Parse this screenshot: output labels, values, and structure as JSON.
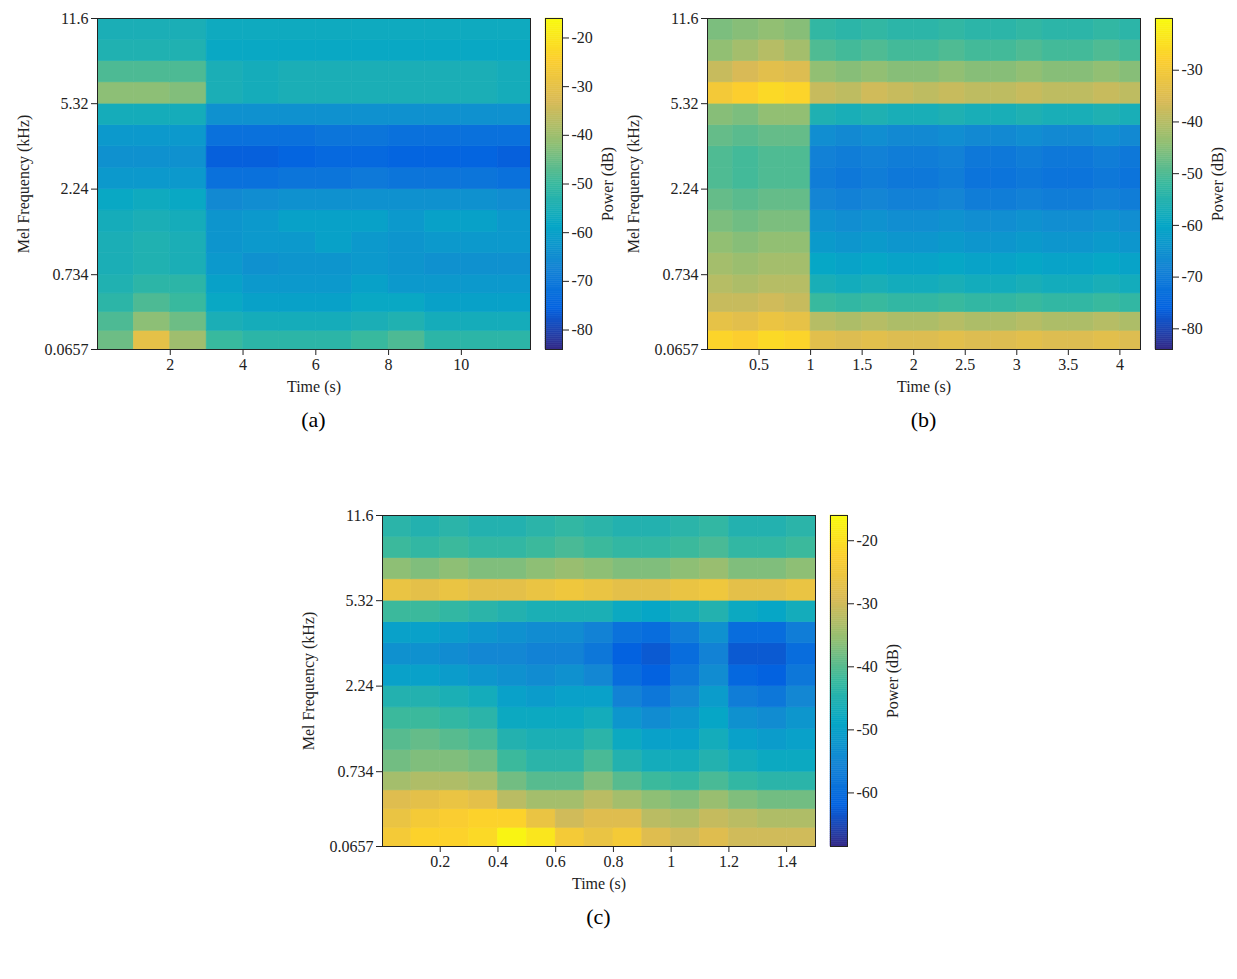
{
  "chart_data": [
    {
      "type": "heatmap",
      "panel_label": "(a)",
      "xlabel": "Time (s)",
      "ylabel": "Mel Frequency (kHz)",
      "xlim": [
        0,
        11.9
      ],
      "xticks": [
        2,
        4,
        6,
        8,
        10
      ],
      "ylim": [
        0.0657,
        11.6
      ],
      "yticks": [
        0.0657,
        0.734,
        2.24,
        5.32,
        11.6
      ],
      "time_edges": [
        0,
        1,
        2,
        3,
        4,
        5,
        6,
        7,
        8,
        9,
        10,
        11,
        11.9
      ],
      "frequency_edges": [
        0.0657,
        0.196,
        0.348,
        0.526,
        0.734,
        1.02,
        1.35,
        1.76,
        2.24,
        2.82,
        3.51,
        4.33,
        5.32,
        6.5,
        7.9,
        9.59,
        11.6
      ],
      "power": [
        [
          -45,
          -30,
          -40,
          -50,
          -52,
          -52,
          -52,
          -50,
          -48,
          -52,
          -52,
          -52
        ],
        [
          -48,
          -42,
          -45,
          -55,
          -56,
          -56,
          -56,
          -55,
          -54,
          -56,
          -56,
          -56
        ],
        [
          -52,
          -48,
          -50,
          -58,
          -60,
          -60,
          -60,
          -58,
          -58,
          -60,
          -60,
          -60
        ],
        [
          -54,
          -52,
          -52,
          -60,
          -62,
          -62,
          -62,
          -60,
          -62,
          -62,
          -62,
          -62
        ],
        [
          -55,
          -54,
          -55,
          -62,
          -64,
          -63,
          -63,
          -62,
          -63,
          -64,
          -64,
          -64
        ],
        [
          -55,
          -54,
          -55,
          -63,
          -62,
          -62,
          -60,
          -62,
          -63,
          -62,
          -62,
          -62
        ],
        [
          -56,
          -55,
          -56,
          -63,
          -62,
          -60,
          -60,
          -60,
          -62,
          -60,
          -60,
          -62
        ],
        [
          -58,
          -57,
          -58,
          -66,
          -65,
          -64,
          -64,
          -64,
          -64,
          -64,
          -64,
          -65
        ],
        [
          -62,
          -62,
          -62,
          -72,
          -72,
          -71,
          -71,
          -70,
          -71,
          -71,
          -71,
          -72
        ],
        [
          -64,
          -64,
          -64,
          -76,
          -76,
          -75,
          -74,
          -74,
          -75,
          -75,
          -75,
          -76
        ],
        [
          -62,
          -62,
          -62,
          -72,
          -72,
          -72,
          -71,
          -71,
          -72,
          -72,
          -72,
          -72
        ],
        [
          -56,
          -56,
          -56,
          -64,
          -64,
          -64,
          -64,
          -64,
          -64,
          -64,
          -64,
          -64
        ],
        [
          -42,
          -42,
          -43,
          -55,
          -56,
          -55,
          -55,
          -55,
          -55,
          -55,
          -55,
          -56
        ],
        [
          -48,
          -48,
          -48,
          -55,
          -56,
          -55,
          -55,
          -55,
          -55,
          -55,
          -55,
          -56
        ],
        [
          -54,
          -54,
          -54,
          -58,
          -58,
          -58,
          -58,
          -58,
          -58,
          -58,
          -58,
          -58
        ],
        [
          -55,
          -55,
          -55,
          -57,
          -57,
          -57,
          -57,
          -57,
          -57,
          -57,
          -57,
          -57
        ]
      ],
      "colorbar": {
        "label": "Power (dB)",
        "range": [
          -84,
          -16
        ],
        "ticks": [
          -80,
          -70,
          -60,
          -50,
          -40,
          -30,
          -20
        ]
      }
    },
    {
      "type": "heatmap",
      "panel_label": "(b)",
      "xlabel": "Time (s)",
      "ylabel": "Mel Frequency (kHz)",
      "xlim": [
        0,
        4.2
      ],
      "xticks": [
        0.5,
        1,
        1.5,
        2,
        2.5,
        3,
        3.5,
        4
      ],
      "ylim": [
        0.0657,
        11.6
      ],
      "yticks": [
        0.0657,
        0.734,
        2.24,
        5.32,
        11.6
      ],
      "time_edges": [
        0,
        0.25,
        0.5,
        0.75,
        1,
        1.25,
        1.5,
        1.75,
        2,
        2.25,
        2.5,
        2.75,
        3,
        3.25,
        3.5,
        3.75,
        4,
        4.2
      ],
      "frequency_edges": [
        0.0657,
        0.196,
        0.348,
        0.526,
        0.734,
        1.02,
        1.35,
        1.76,
        2.24,
        2.82,
        3.51,
        4.33,
        5.32,
        6.5,
        7.9,
        9.59,
        11.6
      ],
      "power": [
        [
          -27,
          -28,
          -26,
          -27,
          -34,
          -35,
          -34,
          -35,
          -35,
          -34,
          -35,
          -35,
          -34,
          -35,
          -35,
          -34,
          -35
        ],
        [
          -33,
          -34,
          -32,
          -33,
          -40,
          -41,
          -40,
          -41,
          -41,
          -40,
          -41,
          -41,
          -40,
          -41,
          -41,
          -40,
          -41
        ],
        [
          -38,
          -38,
          -37,
          -38,
          -52,
          -53,
          -52,
          -53,
          -53,
          -52,
          -53,
          -53,
          -52,
          -53,
          -53,
          -52,
          -53
        ],
        [
          -40,
          -41,
          -40,
          -40,
          -57,
          -58,
          -57,
          -58,
          -58,
          -57,
          -58,
          -58,
          -57,
          -58,
          -58,
          -57,
          -58
        ],
        [
          -42,
          -43,
          -42,
          -42,
          -60,
          -61,
          -60,
          -61,
          -61,
          -60,
          -61,
          -61,
          -60,
          -61,
          -61,
          -60,
          -61
        ],
        [
          -44,
          -45,
          -44,
          -44,
          -63,
          -64,
          -63,
          -64,
          -64,
          -63,
          -64,
          -64,
          -63,
          -64,
          -64,
          -63,
          -64
        ],
        [
          -46,
          -47,
          -46,
          -46,
          -65,
          -66,
          -65,
          -66,
          -66,
          -65,
          -66,
          -66,
          -65,
          -66,
          -66,
          -65,
          -66
        ],
        [
          -48,
          -49,
          -48,
          -48,
          -68,
          -69,
          -68,
          -69,
          -69,
          -68,
          -70,
          -70,
          -69,
          -70,
          -70,
          -69,
          -70
        ],
        [
          -50,
          -51,
          -50,
          -50,
          -70,
          -71,
          -70,
          -71,
          -71,
          -70,
          -72,
          -72,
          -71,
          -72,
          -72,
          -71,
          -72
        ],
        [
          -50,
          -51,
          -50,
          -50,
          -69,
          -70,
          -69,
          -70,
          -70,
          -69,
          -71,
          -71,
          -70,
          -71,
          -71,
          -70,
          -71
        ],
        [
          -48,
          -49,
          -48,
          -48,
          -66,
          -67,
          -66,
          -67,
          -67,
          -66,
          -67,
          -67,
          -66,
          -67,
          -67,
          -66,
          -67
        ],
        [
          -45,
          -46,
          -44,
          -44,
          -56,
          -57,
          -56,
          -57,
          -57,
          -56,
          -57,
          -57,
          -56,
          -57,
          -57,
          -56,
          -57
        ],
        [
          -30,
          -28,
          -26,
          -27,
          -38,
          -39,
          -37,
          -38,
          -39,
          -38,
          -39,
          -39,
          -38,
          -39,
          -39,
          -38,
          -39
        ],
        [
          -38,
          -36,
          -34,
          -35,
          -44,
          -45,
          -44,
          -45,
          -45,
          -44,
          -45,
          -45,
          -44,
          -45,
          -45,
          -44,
          -45
        ],
        [
          -44,
          -42,
          -40,
          -42,
          -50,
          -51,
          -50,
          -51,
          -51,
          -50,
          -51,
          -51,
          -50,
          -51,
          -51,
          -50,
          -51
        ],
        [
          -46,
          -45,
          -44,
          -45,
          -53,
          -54,
          -53,
          -54,
          -54,
          -53,
          -54,
          -54,
          -53,
          -54,
          -54,
          -53,
          -54
        ]
      ],
      "colorbar": {
        "label": "Power (dB)",
        "range": [
          -84,
          -20
        ],
        "ticks": [
          -80,
          -70,
          -60,
          -50,
          -40,
          -30
        ]
      }
    },
    {
      "type": "heatmap",
      "panel_label": "(c)",
      "xlabel": "Time (s)",
      "ylabel": "Mel Frequency (kHz)",
      "xlim": [
        0,
        1.5
      ],
      "xticks": [
        0.2,
        0.4,
        0.6,
        0.8,
        1,
        1.2,
        1.4
      ],
      "ylim": [
        0.0657,
        11.6
      ],
      "yticks": [
        0.0657,
        0.734,
        2.24,
        5.32,
        11.6
      ],
      "time_edges": [
        0,
        0.1,
        0.2,
        0.3,
        0.4,
        0.5,
        0.6,
        0.7,
        0.8,
        0.9,
        1.0,
        1.1,
        1.2,
        1.3,
        1.4,
        1.5
      ],
      "frequency_edges": [
        0.0657,
        0.196,
        0.348,
        0.526,
        0.734,
        1.02,
        1.35,
        1.76,
        2.24,
        2.82,
        3.51,
        4.33,
        5.32,
        6.5,
        7.9,
        9.59,
        11.6
      ],
      "power": [
        [
          -24,
          -22,
          -22,
          -21,
          -17,
          -19,
          -24,
          -26,
          -24,
          -28,
          -30,
          -28,
          -30,
          -30,
          -30
        ],
        [
          -26,
          -24,
          -23,
          -22,
          -22,
          -26,
          -30,
          -28,
          -28,
          -32,
          -33,
          -31,
          -32,
          -33,
          -33
        ],
        [
          -28,
          -27,
          -26,
          -27,
          -32,
          -34,
          -34,
          -32,
          -34,
          -36,
          -37,
          -35,
          -37,
          -38,
          -38
        ],
        [
          -34,
          -33,
          -33,
          -34,
          -38,
          -40,
          -40,
          -37,
          -40,
          -42,
          -43,
          -41,
          -43,
          -44,
          -44
        ],
        [
          -38,
          -37,
          -37,
          -38,
          -42,
          -44,
          -44,
          -41,
          -45,
          -47,
          -47,
          -45,
          -47,
          -48,
          -48
        ],
        [
          -40,
          -39,
          -40,
          -41,
          -45,
          -46,
          -46,
          -44,
          -48,
          -50,
          -50,
          -47,
          -50,
          -51,
          -50
        ],
        [
          -42,
          -42,
          -43,
          -44,
          -48,
          -48,
          -48,
          -47,
          -52,
          -54,
          -52,
          -49,
          -53,
          -54,
          -52
        ],
        [
          -45,
          -45,
          -46,
          -47,
          -50,
          -51,
          -50,
          -50,
          -56,
          -58,
          -55,
          -51,
          -57,
          -58,
          -55
        ],
        [
          -50,
          -50,
          -51,
          -52,
          -53,
          -54,
          -53,
          -55,
          -60,
          -62,
          -58,
          -54,
          -61,
          -62,
          -58
        ],
        [
          -53,
          -53,
          -54,
          -55,
          -55,
          -56,
          -56,
          -58,
          -62,
          -63,
          -60,
          -56,
          -63,
          -63,
          -60
        ],
        [
          -50,
          -50,
          -51,
          -52,
          -53,
          -54,
          -54,
          -56,
          -59,
          -60,
          -57,
          -53,
          -60,
          -60,
          -57
        ],
        [
          -42,
          -42,
          -43,
          -44,
          -45,
          -46,
          -46,
          -46,
          -48,
          -49,
          -47,
          -45,
          -48,
          -49,
          -47
        ],
        [
          -26,
          -27,
          -26,
          -27,
          -27,
          -26,
          -25,
          -26,
          -27,
          -27,
          -26,
          -25,
          -27,
          -27,
          -26
        ],
        [
          -36,
          -37,
          -36,
          -37,
          -37,
          -36,
          -35,
          -36,
          -37,
          -37,
          -36,
          -35,
          -37,
          -37,
          -36
        ],
        [
          -42,
          -43,
          -42,
          -43,
          -43,
          -42,
          -41,
          -42,
          -43,
          -43,
          -42,
          -41,
          -43,
          -43,
          -42
        ],
        [
          -44,
          -45,
          -44,
          -45,
          -45,
          -44,
          -43,
          -44,
          -45,
          -45,
          -44,
          -43,
          -45,
          -45,
          -44
        ]
      ],
      "colorbar": {
        "label": "Power (dB)",
        "range": [
          -68.5,
          -16
        ],
        "ticks": [
          -60,
          -50,
          -40,
          -30,
          -20
        ]
      }
    }
  ]
}
